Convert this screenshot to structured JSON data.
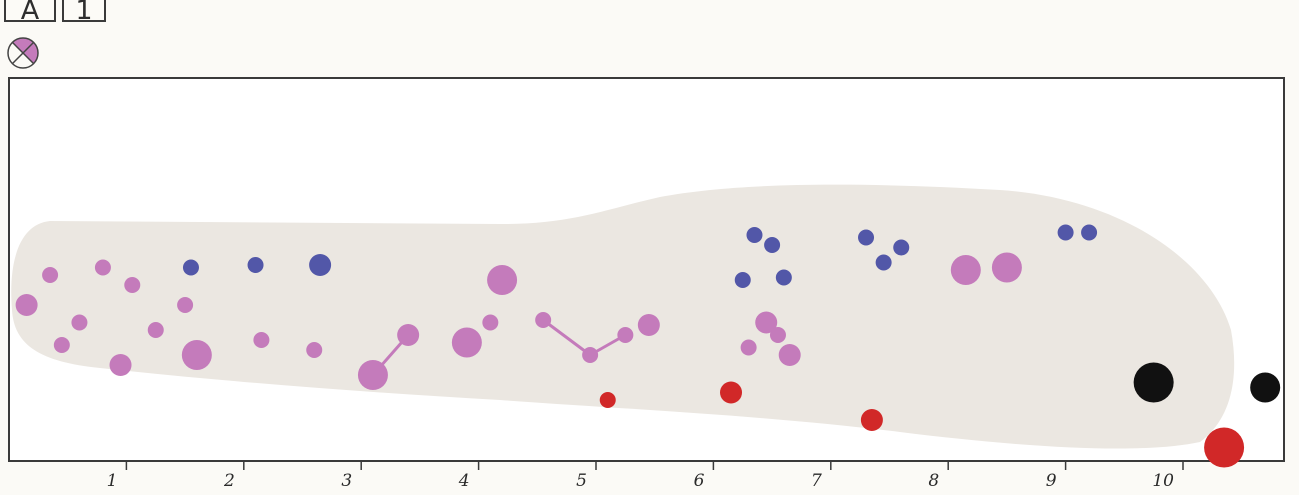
{
  "header": {
    "box_a": "A",
    "box_1": "1"
  },
  "colors": {
    "background": "#fbfaf6",
    "frame_fill": "#ffffff",
    "frame_stroke": "#3a3a3a",
    "region_fill": "#ebe7e1",
    "pink": "#c47bbb",
    "blue": "#5257a8",
    "red": "#d12828",
    "black": "#111111",
    "symbol_stroke": "#444444"
  },
  "axis": {
    "range": [
      0,
      11
    ],
    "tick_labels": [
      "1",
      "2",
      "3",
      "4",
      "5",
      "6",
      "7",
      "8",
      "9",
      "10"
    ]
  },
  "dots": [
    {
      "x": 0.15,
      "y": 2.0,
      "size": "m",
      "color": "pink"
    },
    {
      "x": 0.35,
      "y": 1.4,
      "size": "s",
      "color": "pink"
    },
    {
      "x": 0.45,
      "y": 2.8,
      "size": "s",
      "color": "pink"
    },
    {
      "x": 0.6,
      "y": 2.35,
      "size": "s",
      "color": "pink"
    },
    {
      "x": 0.8,
      "y": 1.25,
      "size": "s",
      "color": "pink"
    },
    {
      "x": 0.95,
      "y": 3.2,
      "size": "m",
      "color": "pink"
    },
    {
      "x": 1.05,
      "y": 1.6,
      "size": "s",
      "color": "pink"
    },
    {
      "x": 1.25,
      "y": 2.5,
      "size": "s",
      "color": "pink"
    },
    {
      "x": 1.5,
      "y": 2.0,
      "size": "s",
      "color": "pink"
    },
    {
      "x": 1.55,
      "y": 1.25,
      "size": "s",
      "color": "blue"
    },
    {
      "x": 1.6,
      "y": 3.0,
      "size": "l",
      "color": "pink"
    },
    {
      "x": 2.1,
      "y": 1.2,
      "size": "s",
      "color": "blue"
    },
    {
      "x": 2.15,
      "y": 2.7,
      "size": "s",
      "color": "pink"
    },
    {
      "x": 2.65,
      "y": 1.2,
      "size": "m",
      "color": "blue"
    },
    {
      "x": 2.6,
      "y": 2.9,
      "size": "s",
      "color": "pink"
    },
    {
      "x": 3.1,
      "y": 3.4,
      "size": "l",
      "color": "pink"
    },
    {
      "x": 3.4,
      "y": 2.6,
      "size": "m",
      "color": "pink"
    },
    {
      "x": 3.9,
      "y": 2.75,
      "size": "l",
      "color": "pink"
    },
    {
      "x": 4.1,
      "y": 2.35,
      "size": "s",
      "color": "pink"
    },
    {
      "x": 4.2,
      "y": 1.5,
      "size": "l",
      "color": "pink"
    },
    {
      "x": 4.55,
      "y": 2.3,
      "size": "s",
      "color": "pink"
    },
    {
      "x": 4.95,
      "y": 3.0,
      "size": "s",
      "color": "pink"
    },
    {
      "x": 5.1,
      "y": 3.9,
      "size": "s",
      "color": "red"
    },
    {
      "x": 5.25,
      "y": 2.6,
      "size": "s",
      "color": "pink"
    },
    {
      "x": 5.45,
      "y": 2.4,
      "size": "m",
      "color": "pink"
    },
    {
      "x": 6.25,
      "y": 1.5,
      "size": "s",
      "color": "blue"
    },
    {
      "x": 6.35,
      "y": 0.6,
      "size": "s",
      "color": "blue"
    },
    {
      "x": 6.5,
      "y": 0.8,
      "size": "s",
      "color": "blue"
    },
    {
      "x": 6.6,
      "y": 1.45,
      "size": "s",
      "color": "blue"
    },
    {
      "x": 6.45,
      "y": 2.35,
      "size": "m",
      "color": "pink"
    },
    {
      "x": 6.55,
      "y": 2.6,
      "size": "s",
      "color": "pink"
    },
    {
      "x": 6.3,
      "y": 2.85,
      "size": "s",
      "color": "pink"
    },
    {
      "x": 6.65,
      "y": 3.0,
      "size": "m",
      "color": "pink"
    },
    {
      "x": 6.15,
      "y": 3.75,
      "size": "m",
      "color": "red"
    },
    {
      "x": 7.3,
      "y": 0.65,
      "size": "s",
      "color": "blue"
    },
    {
      "x": 7.45,
      "y": 1.15,
      "size": "s",
      "color": "blue"
    },
    {
      "x": 7.6,
      "y": 0.85,
      "size": "s",
      "color": "blue"
    },
    {
      "x": 7.35,
      "y": 4.3,
      "size": "m",
      "color": "red"
    },
    {
      "x": 8.15,
      "y": 1.3,
      "size": "l",
      "color": "pink"
    },
    {
      "x": 8.5,
      "y": 1.25,
      "size": "l",
      "color": "pink"
    },
    {
      "x": 9.0,
      "y": 0.55,
      "size": "s",
      "color": "blue"
    },
    {
      "x": 9.2,
      "y": 0.55,
      "size": "s",
      "color": "blue"
    },
    {
      "x": 9.75,
      "y": 3.55,
      "size": "xl",
      "color": "black"
    },
    {
      "x": 10.7,
      "y": 3.65,
      "size": "l",
      "color": "black"
    },
    {
      "x": 10.35,
      "y": 4.85,
      "size": "xl",
      "color": "red"
    }
  ],
  "links": [
    [
      15,
      16
    ],
    [
      20,
      21
    ],
    [
      21,
      23
    ]
  ]
}
